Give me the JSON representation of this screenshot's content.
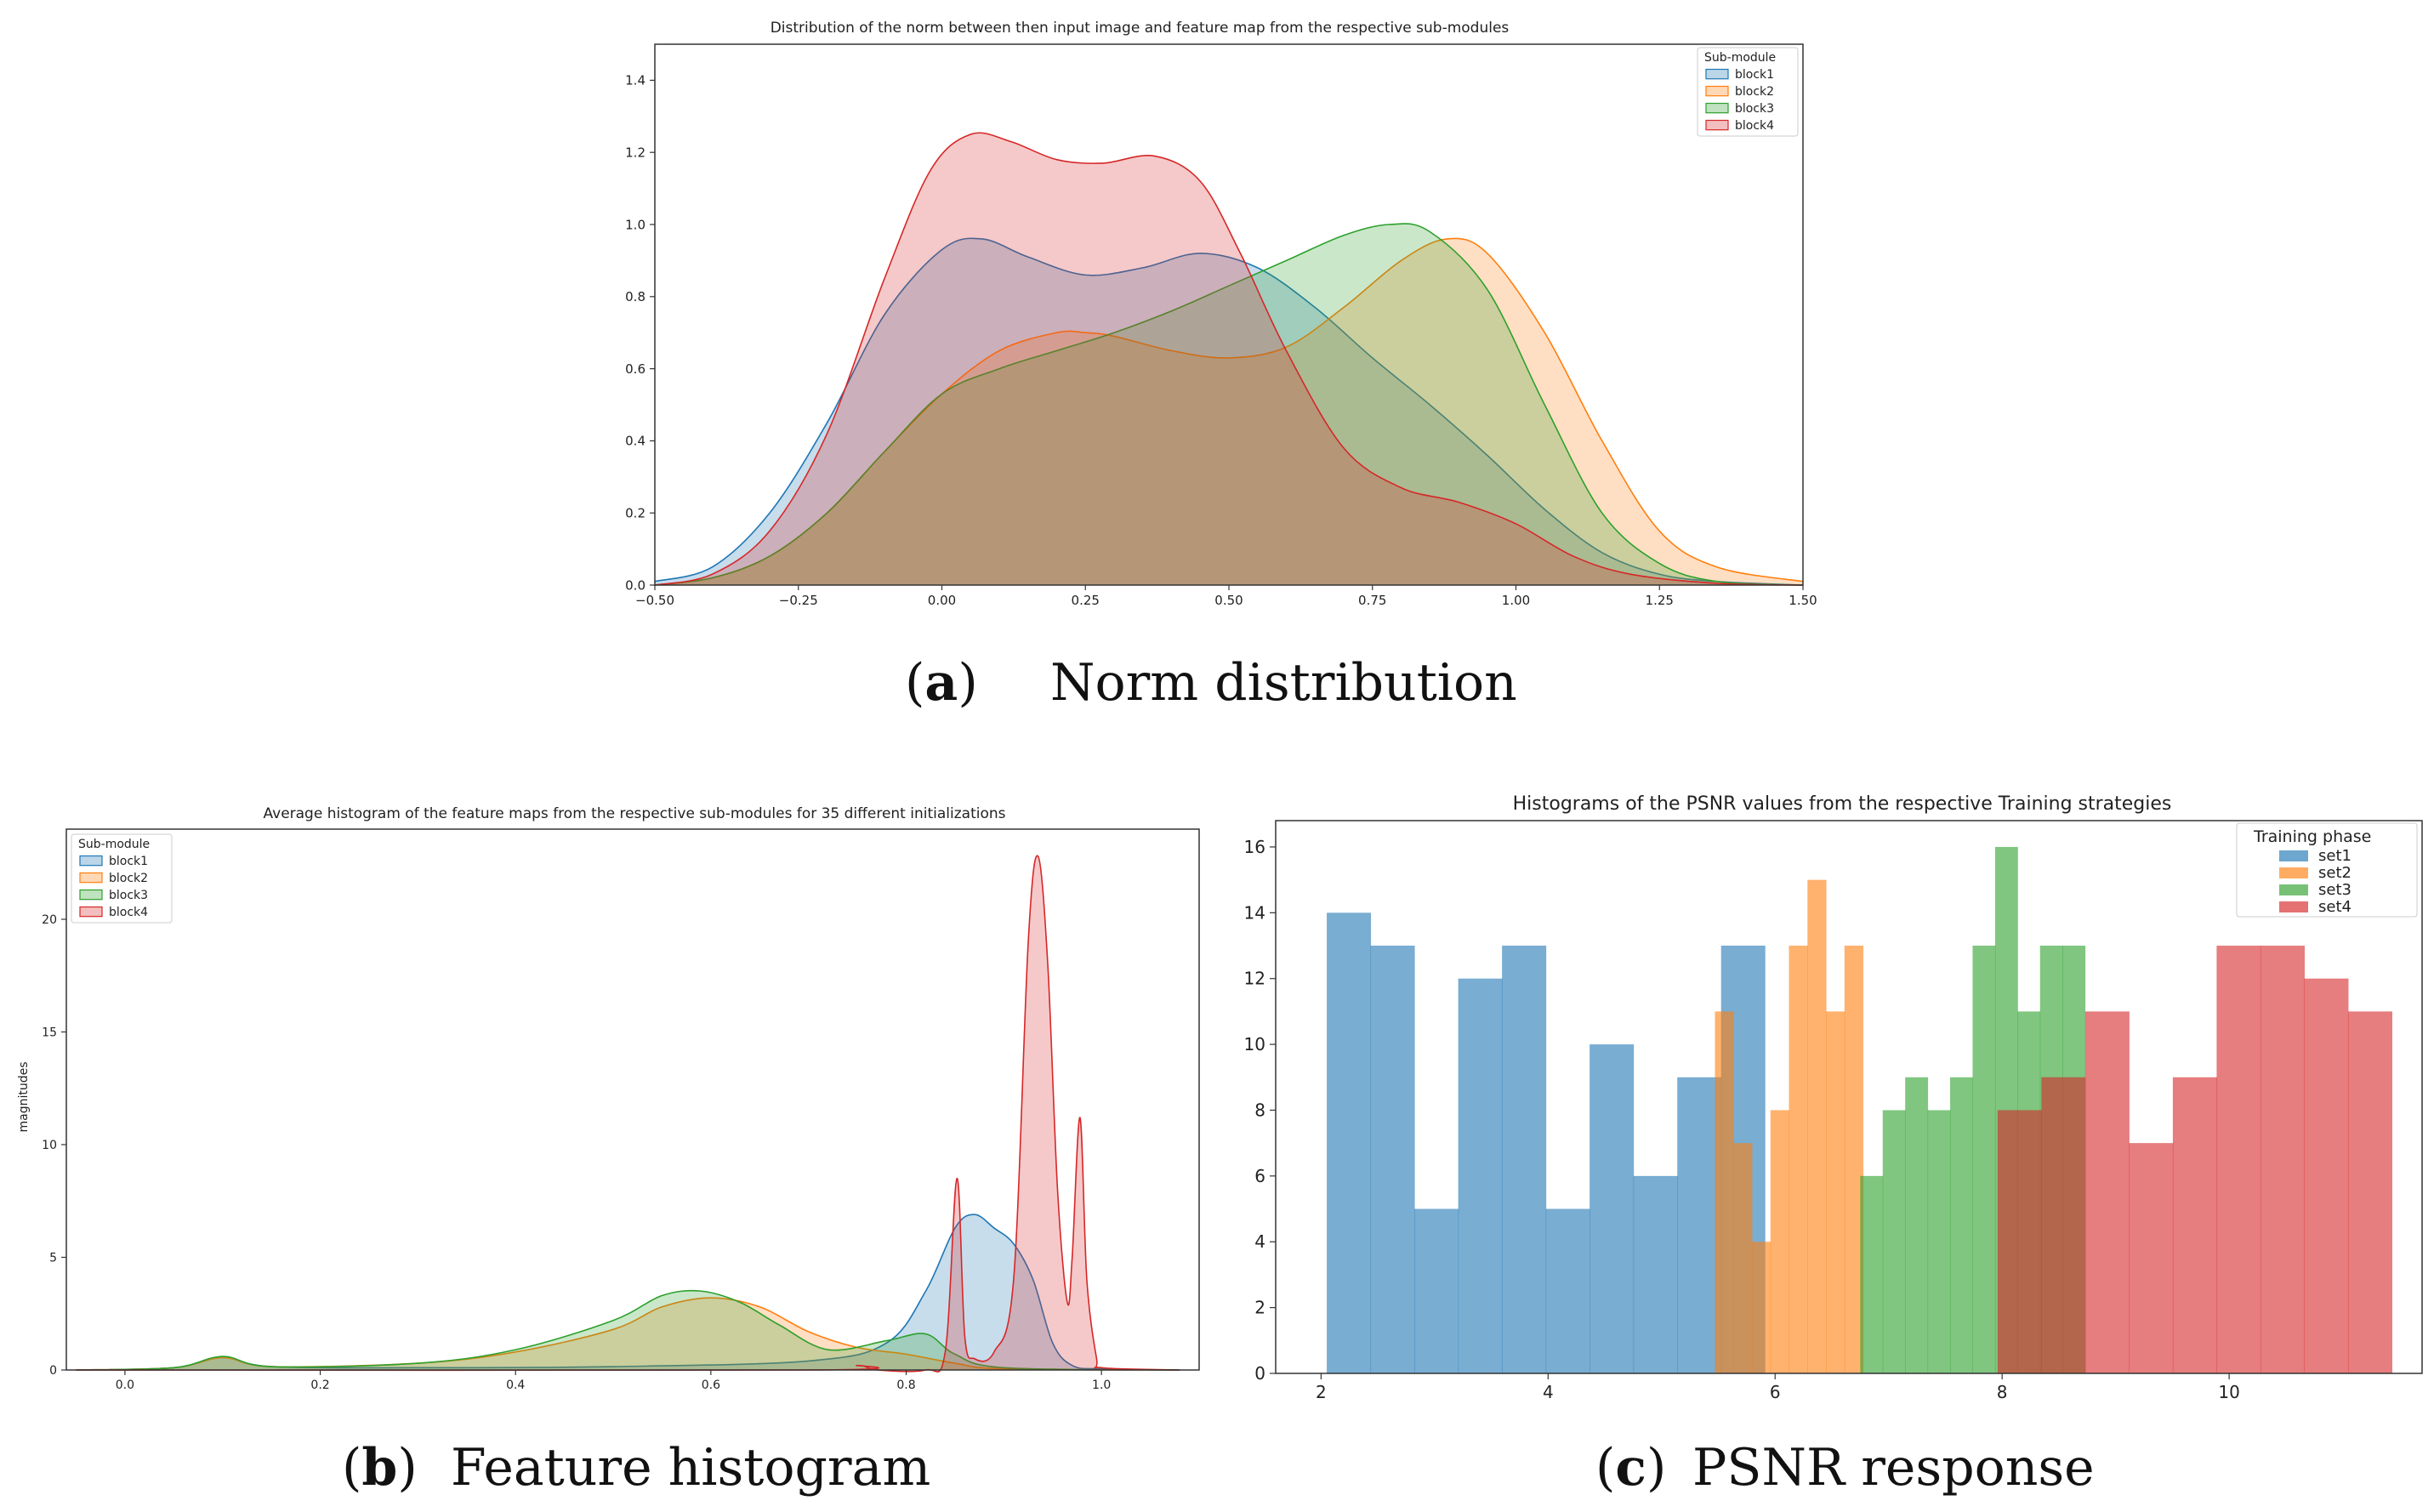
{
  "colors": {
    "block1": "#1f77b4",
    "block2": "#ff7f0e",
    "block3": "#2ca02c",
    "block4": "#d62728"
  },
  "chart_data": [
    {
      "id": "a",
      "type": "area",
      "title": "Distribution of the norm between then input image and feature map from the respective sub-modules",
      "caption_letter": "a",
      "caption_text": "Norm distribution",
      "xlim": [
        -0.5,
        1.5
      ],
      "ylim": [
        0,
        1.5
      ],
      "xticks": [
        -0.5,
        -0.25,
        0.0,
        0.25,
        0.5,
        0.75,
        1.0,
        1.25,
        1.5
      ],
      "xtick_labels": [
        "−0.50",
        "−0.25",
        "0.00",
        "0.25",
        "0.50",
        "0.75",
        "1.00",
        "1.25",
        "1.50"
      ],
      "yticks": [
        0,
        0.2,
        0.4,
        0.6,
        0.8,
        1.0,
        1.2,
        1.4
      ],
      "ytick_labels": [
        "0.0",
        "0.2",
        "0.4",
        "0.6",
        "0.8",
        "1.0",
        "1.2",
        "1.4"
      ],
      "legend_title": "Sub-module",
      "legend_position": "top-right",
      "series": [
        {
          "name": "block1",
          "x": [
            -0.5,
            -0.4,
            -0.3,
            -0.2,
            -0.1,
            0.0,
            0.07,
            0.15,
            0.25,
            0.35,
            0.45,
            0.55,
            0.65,
            0.75,
            0.85,
            0.95,
            1.05,
            1.15,
            1.25,
            1.35,
            1.5
          ],
          "y": [
            0.01,
            0.05,
            0.2,
            0.45,
            0.75,
            0.93,
            0.96,
            0.91,
            0.86,
            0.88,
            0.92,
            0.88,
            0.77,
            0.63,
            0.5,
            0.36,
            0.21,
            0.09,
            0.03,
            0.01,
            0.0
          ]
        },
        {
          "name": "block2",
          "x": [
            -0.5,
            -0.4,
            -0.3,
            -0.2,
            -0.1,
            0.0,
            0.1,
            0.2,
            0.25,
            0.3,
            0.4,
            0.5,
            0.6,
            0.7,
            0.8,
            0.88,
            0.95,
            1.05,
            1.15,
            1.25,
            1.35,
            1.5
          ],
          "y": [
            0.0,
            0.02,
            0.08,
            0.2,
            0.37,
            0.53,
            0.65,
            0.7,
            0.7,
            0.69,
            0.65,
            0.63,
            0.66,
            0.77,
            0.9,
            0.96,
            0.92,
            0.7,
            0.4,
            0.15,
            0.05,
            0.01
          ]
        },
        {
          "name": "block3",
          "x": [
            -0.5,
            -0.4,
            -0.3,
            -0.2,
            -0.1,
            0.0,
            0.1,
            0.2,
            0.3,
            0.4,
            0.5,
            0.6,
            0.7,
            0.78,
            0.85,
            0.95,
            1.05,
            1.15,
            1.25,
            1.35,
            1.5
          ],
          "y": [
            0.0,
            0.02,
            0.08,
            0.2,
            0.37,
            0.53,
            0.6,
            0.65,
            0.7,
            0.76,
            0.83,
            0.9,
            0.97,
            1.0,
            0.98,
            0.82,
            0.5,
            0.2,
            0.06,
            0.01,
            0.0
          ]
        },
        {
          "name": "block4",
          "x": [
            -0.5,
            -0.4,
            -0.3,
            -0.2,
            -0.1,
            -0.02,
            0.05,
            0.12,
            0.2,
            0.28,
            0.37,
            0.45,
            0.52,
            0.6,
            0.7,
            0.8,
            0.9,
            1.0,
            1.1,
            1.2,
            1.35,
            1.5
          ],
          "y": [
            0.0,
            0.03,
            0.15,
            0.42,
            0.85,
            1.15,
            1.25,
            1.23,
            1.18,
            1.17,
            1.19,
            1.12,
            0.92,
            0.65,
            0.38,
            0.27,
            0.23,
            0.17,
            0.08,
            0.03,
            0.005,
            0.0
          ]
        }
      ]
    },
    {
      "id": "b",
      "type": "area",
      "title": "Average histogram of the feature maps from the respective sub-modules for 35 different initializations",
      "caption_letter": "b",
      "caption_text": "Feature histogram",
      "ylabel": "magnitudes",
      "xlim": [
        -0.06,
        1.1
      ],
      "ylim": [
        0,
        24
      ],
      "xticks": [
        0.0,
        0.2,
        0.4,
        0.6,
        0.8,
        1.0
      ],
      "xtick_labels": [
        "0.0",
        "0.2",
        "0.4",
        "0.6",
        "0.8",
        "1.0"
      ],
      "yticks": [
        0,
        5,
        10,
        15,
        20
      ],
      "ytick_labels": [
        "0",
        "5",
        "10",
        "15",
        "20"
      ],
      "legend_title": "Sub-module",
      "legend_position": "top-left",
      "series": [
        {
          "name": "block1",
          "x": [
            -0.05,
            0.05,
            0.1,
            0.15,
            0.3,
            0.5,
            0.7,
            0.78,
            0.82,
            0.85,
            0.87,
            0.89,
            0.91,
            0.93,
            0.95,
            0.97,
            1.0,
            1.08
          ],
          "y": [
            0,
            0.1,
            0.55,
            0.15,
            0.1,
            0.15,
            0.4,
            1.2,
            3.5,
            6.3,
            6.9,
            6.3,
            5.6,
            4.0,
            1.2,
            0.2,
            0.05,
            0
          ]
        },
        {
          "name": "block2",
          "x": [
            -0.05,
            0.05,
            0.1,
            0.15,
            0.3,
            0.4,
            0.5,
            0.55,
            0.6,
            0.65,
            0.7,
            0.75,
            0.8,
            0.85,
            0.9,
            1.08
          ],
          "y": [
            0,
            0.1,
            0.55,
            0.15,
            0.3,
            0.8,
            1.8,
            2.8,
            3.2,
            2.8,
            1.7,
            1.0,
            0.7,
            0.3,
            0.05,
            0
          ]
        },
        {
          "name": "block3",
          "x": [
            -0.05,
            0.05,
            0.1,
            0.15,
            0.3,
            0.4,
            0.5,
            0.55,
            0.59,
            0.63,
            0.67,
            0.72,
            0.78,
            0.82,
            0.85,
            0.9,
            1.08
          ],
          "y": [
            0,
            0.1,
            0.6,
            0.15,
            0.3,
            0.9,
            2.2,
            3.3,
            3.5,
            3.0,
            2.0,
            0.9,
            1.3,
            1.6,
            0.7,
            0.1,
            0
          ]
        },
        {
          "name": "block4",
          "x": [
            -0.05,
            0.7,
            0.75,
            0.77,
            0.82,
            0.84,
            0.852,
            0.86,
            0.87,
            0.89,
            0.91,
            0.925,
            0.935,
            0.945,
            0.955,
            0.965,
            0.97,
            0.978,
            0.985,
            0.995,
            1.0,
            1.08
          ],
          "y": [
            0,
            0,
            0.2,
            0,
            0,
            0.8,
            8.5,
            1.5,
            0.5,
            0.8,
            4.0,
            19.0,
            22.8,
            18.0,
            8.0,
            3.0,
            5.0,
            11.2,
            4.0,
            0.5,
            0.1,
            0
          ]
        }
      ]
    },
    {
      "id": "c",
      "type": "bar",
      "title": "Histograms of the PSNR values from the respective Training strategies",
      "caption_letter": "c",
      "caption_text": "PSNR response",
      "xlim": [
        1.6,
        11.7
      ],
      "ylim": [
        0,
        16.8
      ],
      "xticks": [
        2,
        4,
        6,
        8,
        10
      ],
      "xtick_labels": [
        "2",
        "4",
        "6",
        "8",
        "10"
      ],
      "yticks": [
        0,
        2,
        4,
        6,
        8,
        10,
        12,
        14,
        16
      ],
      "ytick_labels": [
        "0",
        "2",
        "4",
        "6",
        "8",
        "10",
        "12",
        "14",
        "16"
      ],
      "legend_title": "Training phase",
      "legend_position": "top-right",
      "series": [
        {
          "name": "set1",
          "bin_start": 2.05,
          "bin_width": 0.386,
          "values": [
            14,
            13,
            5,
            12,
            13,
            5,
            10,
            6,
            9,
            13
          ]
        },
        {
          "name": "set2",
          "bin_start": 5.47,
          "bin_width": 0.163,
          "values": [
            11,
            7,
            4,
            8,
            13,
            15,
            11,
            13
          ]
        },
        {
          "name": "set3",
          "bin_start": 6.75,
          "bin_width": 0.198,
          "values": [
            6,
            8,
            9,
            8,
            9,
            13,
            16,
            11,
            13,
            13
          ]
        },
        {
          "name": "set4",
          "bin_start": 7.96,
          "bin_width": 0.386,
          "values": [
            8,
            9,
            11,
            7,
            9,
            13,
            13,
            12,
            11
          ]
        }
      ]
    }
  ]
}
